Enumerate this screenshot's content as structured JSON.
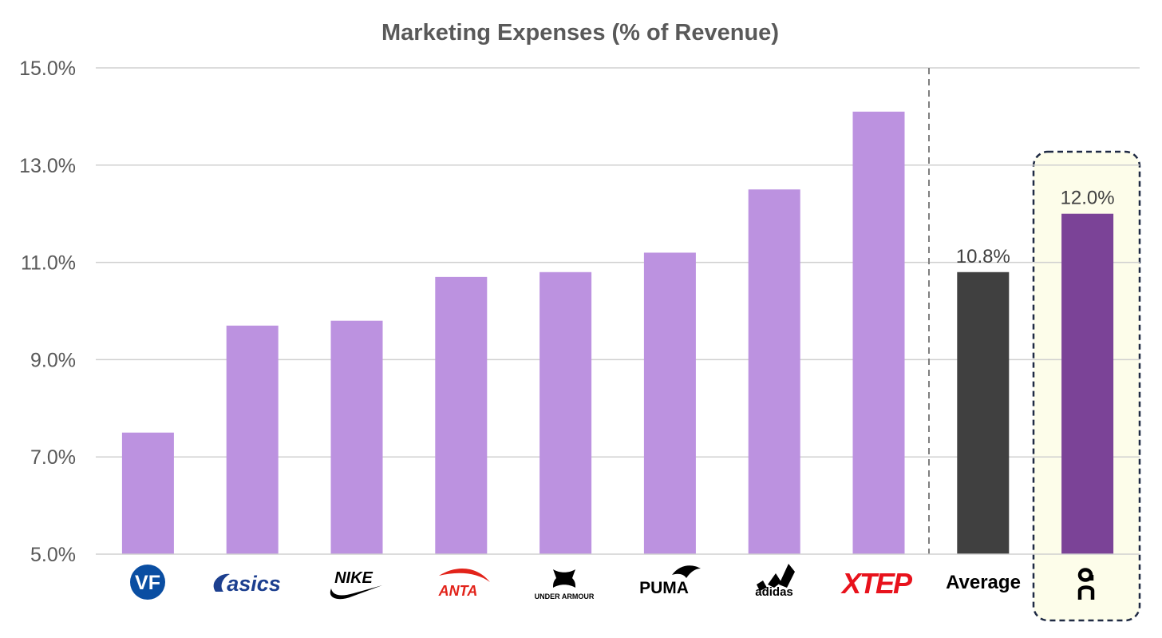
{
  "chart_data": {
    "type": "bar",
    "title": "Marketing Expenses (% of Revenue)",
    "categories": [
      "VF",
      "asics",
      "NIKE",
      "ANTA",
      "UNDER ARMOUR",
      "PUMA",
      "adidas",
      "XTEP",
      "Average",
      "On"
    ],
    "values": [
      7.5,
      9.7,
      9.8,
      10.7,
      10.8,
      11.2,
      12.5,
      14.1,
      10.8,
      12.0
    ],
    "data_labels": [
      "",
      "",
      "",
      "",
      "",
      "",
      "",
      "",
      "10.8%",
      "12.0%"
    ],
    "y_ticks": [
      "5.0%",
      "7.0%",
      "9.0%",
      "11.0%",
      "13.0%",
      "15.0%"
    ],
    "ylim": [
      5,
      15
    ],
    "grid": true,
    "legend": "none",
    "colors": {
      "bar": "#bc92e0",
      "average": "#404040",
      "highlight": "#7b4397",
      "highlight_box_fill": "#fdfdea",
      "grid": "#d0d0d0",
      "separator": "#7f7f7f"
    },
    "category_icons": [
      "vf-logo-icon",
      "asics-logo-icon",
      "nike-logo-icon",
      "anta-logo-icon",
      "under-armour-logo-icon",
      "puma-logo-icon",
      "adidas-logo-icon",
      "xtep-logo-icon",
      "",
      "on-logo-icon"
    ]
  }
}
